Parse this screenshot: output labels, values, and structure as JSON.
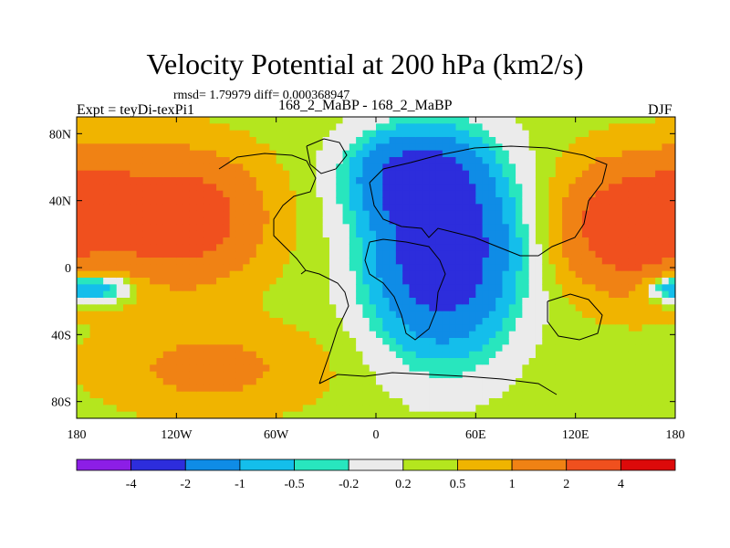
{
  "chart_data": {
    "type": "heatmap",
    "title": "Velocity Potential at 200 hPa (km2/s)",
    "stats_text": "rmsd= 1.79979 diff= 0.000368947",
    "left_label": "Expt = teyDi-texPi1",
    "center_label": "168_2_MaBP - 168_2_MaBP",
    "right_label": "DJF",
    "x_range": [
      -180,
      180
    ],
    "y_range": [
      -90,
      90
    ],
    "x_ticks": [
      {
        "value": -180,
        "label": "180"
      },
      {
        "value": -120,
        "label": "120W"
      },
      {
        "value": -60,
        "label": "60W"
      },
      {
        "value": 0,
        "label": "0"
      },
      {
        "value": 60,
        "label": "60E"
      },
      {
        "value": 120,
        "label": "120E"
      },
      {
        "value": 180,
        "label": "180"
      }
    ],
    "y_ticks": [
      {
        "value": 80,
        "label": "80N"
      },
      {
        "value": 40,
        "label": "40N"
      },
      {
        "value": 0,
        "label": "0"
      },
      {
        "value": -40,
        "label": "40S"
      },
      {
        "value": -80,
        "label": "80S"
      }
    ],
    "colorbar": {
      "levels": [
        -4,
        -2,
        -1,
        -0.5,
        -0.2,
        0.2,
        0.5,
        1,
        2,
        4
      ],
      "labels": [
        "-4",
        "-2",
        "-1",
        "-0.5",
        "-0.2",
        "0.2",
        "0.5",
        "1",
        "2",
        "4"
      ],
      "colors": [
        "#8c1ee6",
        "#2d2ddc",
        "#0f8ce6",
        "#14beeb",
        "#28e6be",
        "#ebebeb",
        "#b4e61e",
        "#f0b400",
        "#f08214",
        "#f0501e",
        "#dc0a0a"
      ]
    },
    "field_centers": [
      {
        "lon": -120,
        "lat": 30,
        "value": 2.8,
        "spread_lon": 45,
        "spread_lat": 35
      },
      {
        "lon": -170,
        "lat": 40,
        "value": 1.5,
        "spread_lon": 25,
        "spread_lat": 30
      },
      {
        "lon": 150,
        "lat": 25,
        "value": 2.8,
        "spread_lon": 35,
        "spread_lat": 35
      },
      {
        "lon": 40,
        "lat": 10,
        "value": -3.6,
        "spread_lon": 40,
        "spread_lat": 55
      },
      {
        "lon": 20,
        "lat": 55,
        "value": -2.0,
        "spread_lon": 35,
        "spread_lat": 25
      },
      {
        "lon": -165,
        "lat": -12,
        "value": -1.4,
        "spread_lon": 20,
        "spread_lat": 8
      },
      {
        "lon": 175,
        "lat": -12,
        "value": -1.2,
        "spread_lon": 15,
        "spread_lat": 8
      },
      {
        "lon": -100,
        "lat": -60,
        "value": 0.9,
        "spread_lon": 60,
        "spread_lat": 25
      }
    ]
  }
}
